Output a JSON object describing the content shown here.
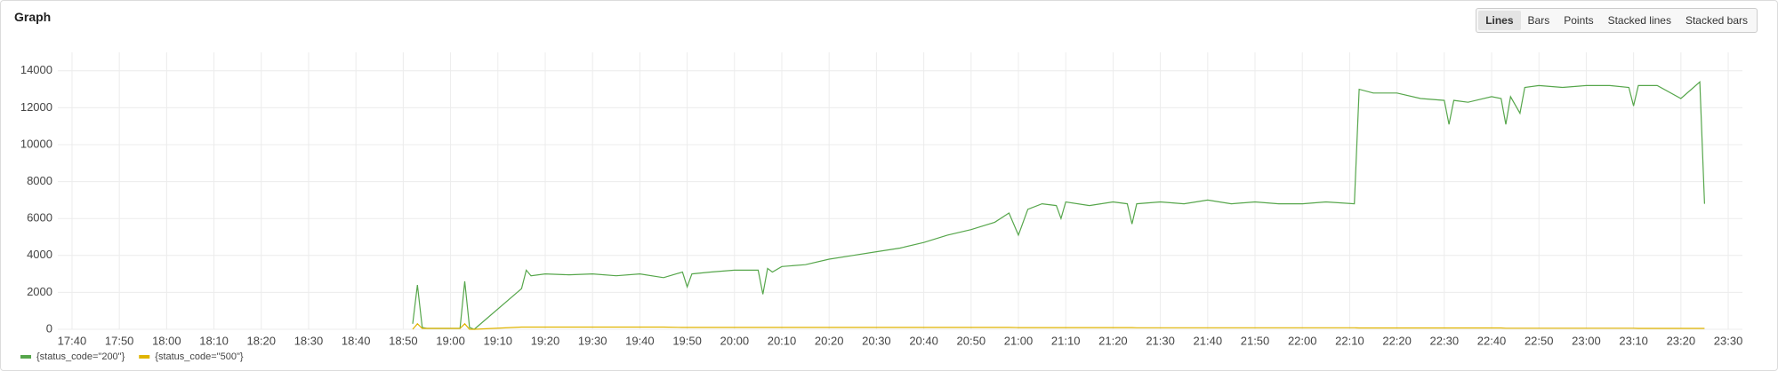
{
  "chart_data": {
    "type": "line",
    "title": "Graph",
    "view_modes": [
      "Lines",
      "Bars",
      "Points",
      "Stacked lines",
      "Stacked bars"
    ],
    "x": [
      "18:52",
      "18:53",
      "18:54",
      "18:55",
      "19:02",
      "19:03",
      "19:04",
      "19:05",
      "19:15",
      "19:16",
      "19:17",
      "19:20",
      "19:25",
      "19:30",
      "19:35",
      "19:40",
      "19:45",
      "19:49",
      "19:50",
      "19:51",
      "19:55",
      "20:00",
      "20:05",
      "20:06",
      "20:07",
      "20:08",
      "20:10",
      "20:15",
      "20:20",
      "20:25",
      "20:30",
      "20:35",
      "20:40",
      "20:45",
      "20:50",
      "20:55",
      "20:58",
      "21:00",
      "21:02",
      "21:05",
      "21:08",
      "21:09",
      "21:10",
      "21:15",
      "21:20",
      "21:23",
      "21:24",
      "21:25",
      "21:30",
      "21:35",
      "21:40",
      "21:45",
      "21:50",
      "21:55",
      "22:00",
      "22:05",
      "22:11",
      "22:12",
      "22:15",
      "22:20",
      "22:25",
      "22:30",
      "22:31",
      "22:32",
      "22:35",
      "22:40",
      "22:42",
      "22:43",
      "22:44",
      "22:46",
      "22:47",
      "22:50",
      "22:55",
      "23:00",
      "23:05",
      "23:09",
      "23:10",
      "23:11",
      "23:15",
      "23:20",
      "23:24",
      "23:25"
    ],
    "series": [
      {
        "name": "{status_code=\"200\"}",
        "color": "#56a64b",
        "values": [
          300,
          2400,
          100,
          50,
          50,
          2600,
          100,
          0,
          2200,
          3200,
          2900,
          3000,
          2950,
          3000,
          2900,
          3000,
          2800,
          3100,
          2300,
          3000,
          3100,
          3200,
          3200,
          1900,
          3300,
          3100,
          3400,
          3500,
          3800,
          4000,
          4200,
          4400,
          4700,
          5100,
          5400,
          5800,
          6300,
          5100,
          6500,
          6800,
          6700,
          6000,
          6900,
          6700,
          6900,
          6800,
          5700,
          6800,
          6900,
          6800,
          7000,
          6800,
          6900,
          6800,
          6800,
          6900,
          6800,
          13000,
          12800,
          12800,
          12500,
          12400,
          11100,
          12400,
          12300,
          12600,
          12500,
          11100,
          12600,
          11700,
          13100,
          13200,
          13100,
          13200,
          13200,
          13100,
          12100,
          13200,
          13200,
          12500,
          13400,
          6800
        ]
      },
      {
        "name": "{status_code=\"500\"}",
        "color": "#e0b400",
        "values": [
          0,
          300,
          50,
          50,
          50,
          300,
          0,
          0,
          120,
          120,
          120,
          120,
          120,
          120,
          120,
          120,
          120,
          100,
          100,
          100,
          100,
          100,
          100,
          100,
          100,
          100,
          100,
          100,
          100,
          100,
          100,
          100,
          100,
          100,
          100,
          100,
          100,
          90,
          90,
          90,
          90,
          90,
          90,
          90,
          90,
          90,
          90,
          80,
          80,
          80,
          80,
          80,
          80,
          80,
          80,
          80,
          80,
          70,
          70,
          70,
          70,
          70,
          70,
          70,
          70,
          70,
          70,
          60,
          60,
          60,
          60,
          60,
          60,
          60,
          60,
          60,
          60,
          50,
          50,
          50,
          50,
          50
        ]
      }
    ],
    "xlim": [
      "17:37",
      "23:33"
    ],
    "xticks": [
      "17:40",
      "17:50",
      "18:00",
      "18:10",
      "18:20",
      "18:30",
      "18:40",
      "18:50",
      "19:00",
      "19:10",
      "19:20",
      "19:30",
      "19:40",
      "19:50",
      "20:00",
      "20:10",
      "20:20",
      "20:30",
      "20:40",
      "20:50",
      "21:00",
      "21:10",
      "21:20",
      "21:30",
      "21:40",
      "21:50",
      "22:00",
      "22:10",
      "22:20",
      "22:30",
      "22:40",
      "22:50",
      "23:00",
      "23:10",
      "23:20",
      "23:30"
    ],
    "ylim": [
      0,
      15000
    ],
    "yticks": [
      0,
      2000,
      4000,
      6000,
      8000,
      10000,
      12000,
      14000
    ],
    "grid": true
  }
}
